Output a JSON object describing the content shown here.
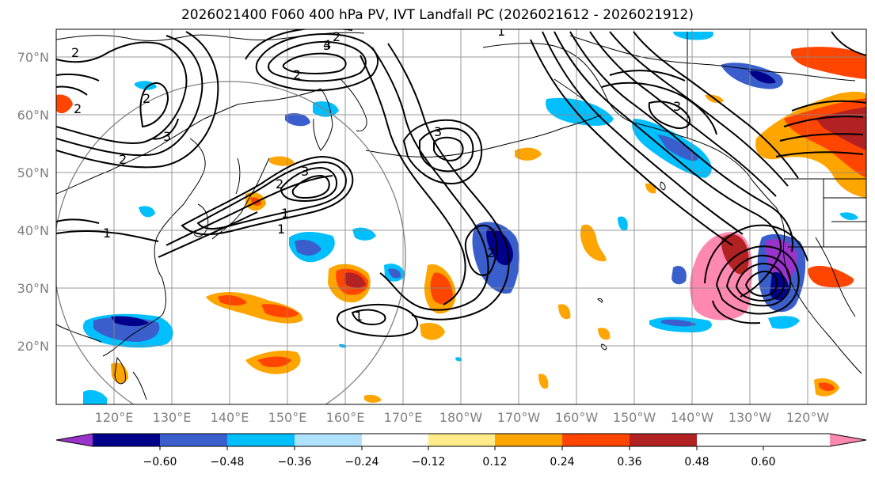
{
  "title": "2026021400 F060 400 hPa PV, IVT Landfall PC (2026021612 - 2026021912)",
  "lat_labels": [
    "70°N",
    "60°N",
    "50°N",
    "40°N",
    "30°N",
    "20°N"
  ],
  "lon_labels": [
    "120°E",
    "130°E",
    "140°E",
    "150°E",
    "160°E",
    "170°E",
    "180°W",
    "170°W",
    "160°W",
    "150°W",
    "140°W",
    "130°W",
    "120°W"
  ],
  "colorbar": {
    "colors": [
      "#9933cc",
      "#00008b",
      "#3a5fcd",
      "#00bfff",
      "#b0e2ff",
      "#ffffff",
      "#ffeb8a",
      "#ffa500",
      "#ff4500",
      "#b22222",
      "#ff88b0"
    ],
    "labels": [
      "−0.60",
      "−0.48",
      "−0.36",
      "−0.24",
      "−0.12",
      "0.12",
      "0.24",
      "0.36",
      "0.48",
      "0.60"
    ]
  },
  "contour_labels": [
    "2",
    "3",
    "4",
    "3",
    "1",
    "2",
    "2",
    "3",
    "2",
    "3",
    "2",
    "1",
    "3",
    "2",
    "1",
    "2",
    "1",
    "2",
    "1"
  ]
}
